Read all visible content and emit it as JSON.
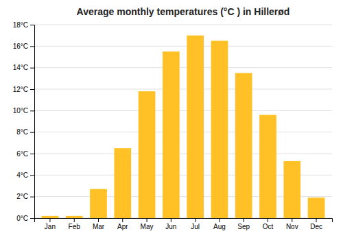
{
  "chart_data": {
    "type": "bar",
    "title": "Average monthly temperatures (°C ) in Hillerød",
    "categories": [
      "Jan",
      "Feb",
      "Mar",
      "Apr",
      "May",
      "Jun",
      "Jul",
      "Aug",
      "Sep",
      "Oct",
      "Nov",
      "Dec"
    ],
    "values": [
      0.2,
      0.2,
      2.7,
      6.5,
      11.8,
      15.5,
      17.0,
      16.5,
      13.5,
      9.6,
      5.3,
      1.9
    ],
    "color": "#FFC125",
    "ylim": [
      0,
      18
    ],
    "yticks": [
      {
        "value": 0,
        "label": "0°C"
      },
      {
        "value": 2,
        "label": "2°C"
      },
      {
        "value": 4,
        "label": "4°C"
      },
      {
        "value": 6,
        "label": "6°C"
      },
      {
        "value": 8,
        "label": "8°C"
      },
      {
        "value": 10,
        "label": "10°C"
      },
      {
        "value": 12,
        "label": "12°C"
      },
      {
        "value": 14,
        "label": "14°C"
      },
      {
        "value": 16,
        "label": "16°C"
      },
      {
        "value": 18,
        "label": "18°C"
      }
    ],
    "grid": true
  }
}
